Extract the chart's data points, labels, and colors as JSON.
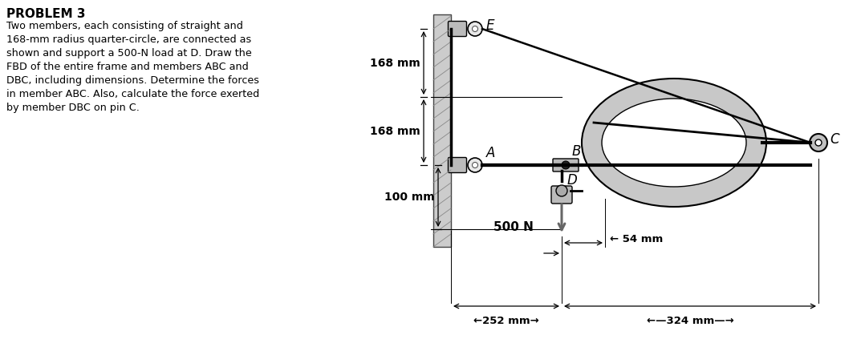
{
  "title": "PROBLEM 3",
  "problem_text_lines": [
    "Two members, each consisting of straight and",
    "168-mm radius quarter-circle, are connected as",
    "shown and support a 500-N load at D. Draw the",
    "FBD of the entire frame and members ABC and",
    "DBC, including dimensions. Determine the forces",
    "in member ABC. Also, calculate the force exerted",
    "by member DBC on pin C."
  ],
  "background_color": "#ffffff",
  "dim_168_1": "168 mm",
  "dim_168_2": "168 mm",
  "dim_100": "100 mm",
  "dim_500N": "500 N",
  "dim_54": "54 mm",
  "dim_252": "←252 mm→",
  "dim_324": "←—324 mm—→",
  "label_E": "E",
  "label_C": "C",
  "label_A": "A",
  "label_B": "B",
  "label_D": "D"
}
